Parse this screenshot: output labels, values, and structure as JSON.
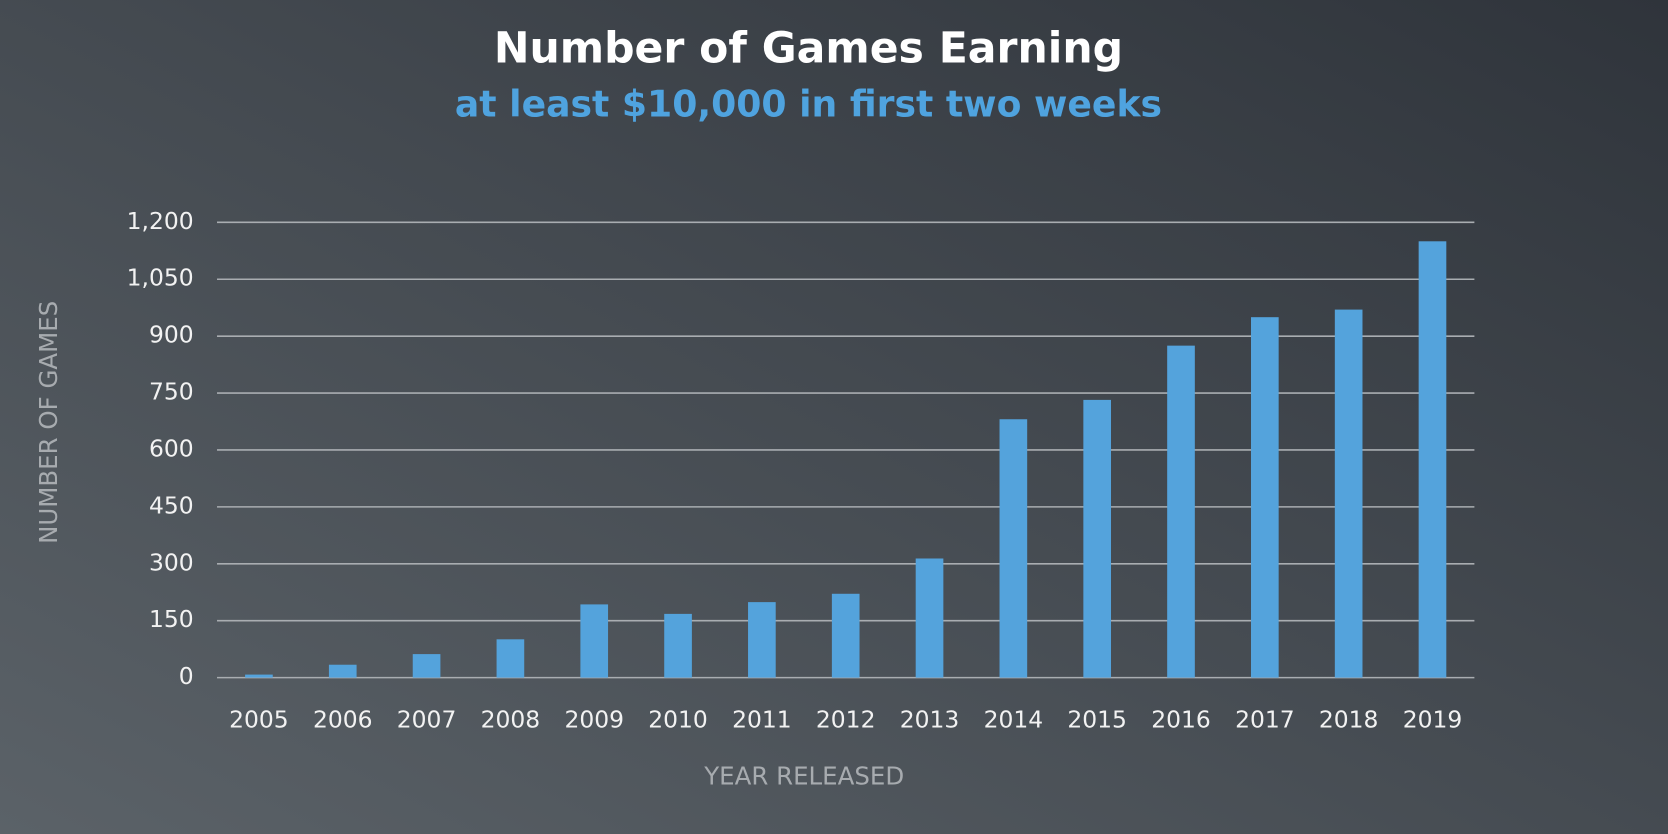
{
  "chart_data": {
    "type": "bar",
    "title": "Number of Games Earning",
    "subtitle": "at least $10,000 in first two weeks",
    "x_label": "YEAR RELEASED",
    "y_label": "NUMBER OF GAMES",
    "categories": [
      "2005",
      "2006",
      "2007",
      "2008",
      "2009",
      "2010",
      "2011",
      "2012",
      "2013",
      "2014",
      "2015",
      "2016",
      "2017",
      "2018",
      "2019"
    ],
    "values": [
      8,
      34,
      62,
      101,
      193,
      168,
      199,
      221,
      314,
      681,
      732,
      875,
      950,
      970,
      1150
    ],
    "color": "#54a3dc",
    "ylim": [
      0,
      1200
    ],
    "yticks": [
      0,
      150,
      300,
      450,
      600,
      750,
      900,
      {
        "value": 1050,
        "label": "1,050"
      },
      {
        "value": 1200,
        "label": "1,200"
      }
    ],
    "grid": true
  }
}
